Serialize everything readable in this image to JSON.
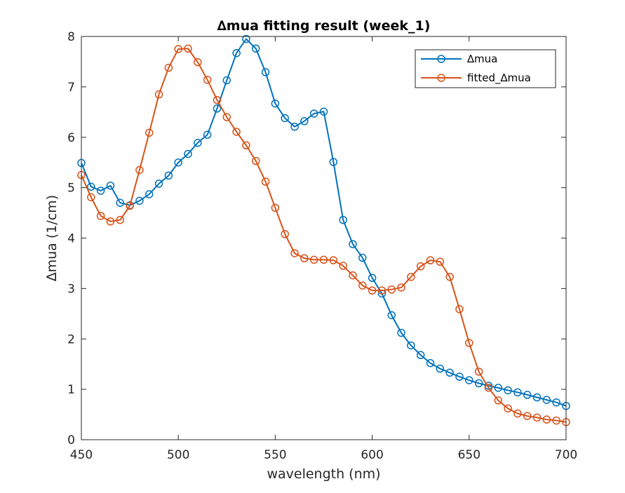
{
  "chart_data": {
    "type": "line",
    "title": "∆mua fitting result (week_1)",
    "xlabel": "wavelength (nm)",
    "ylabel": "∆mua (1/cm)",
    "xlim": [
      450,
      700
    ],
    "ylim": [
      0,
      8
    ],
    "xticks": [
      450,
      500,
      550,
      600,
      650,
      700
    ],
    "yticks": [
      0,
      1,
      2,
      3,
      4,
      5,
      6,
      7,
      8
    ],
    "grid": false,
    "legend_position": "top-right",
    "x": [
      450,
      455,
      460,
      465,
      470,
      475,
      480,
      485,
      490,
      495,
      500,
      505,
      510,
      515,
      520,
      525,
      530,
      535,
      540,
      545,
      550,
      555,
      560,
      565,
      570,
      575,
      580,
      585,
      590,
      595,
      600,
      605,
      610,
      615,
      620,
      625,
      630,
      635,
      640,
      645,
      650,
      655,
      660,
      665,
      670,
      675,
      680,
      685,
      690,
      695,
      700
    ],
    "series": [
      {
        "name": "∆mua",
        "color": "#0072BD",
        "marker": "circle",
        "values": [
          5.49,
          5.02,
          4.94,
          5.04,
          4.7,
          4.65,
          4.74,
          4.87,
          5.08,
          5.24,
          5.5,
          5.67,
          5.89,
          6.05,
          6.57,
          7.13,
          7.67,
          7.95,
          7.76,
          7.29,
          6.67,
          6.38,
          6.21,
          6.32,
          6.47,
          6.51,
          5.51,
          4.36,
          3.88,
          3.61,
          3.21,
          2.9,
          2.47,
          2.12,
          1.87,
          1.68,
          1.52,
          1.41,
          1.33,
          1.25,
          1.18,
          1.12,
          1.07,
          1.03,
          0.98,
          0.94,
          0.89,
          0.84,
          0.79,
          0.74,
          0.67
        ]
      },
      {
        "name": "fitted_∆mua",
        "color": "#D95319",
        "marker": "circle",
        "values": [
          5.25,
          4.81,
          4.44,
          4.33,
          4.36,
          4.64,
          5.35,
          6.09,
          6.85,
          7.38,
          7.75,
          7.76,
          7.49,
          7.14,
          6.74,
          6.4,
          6.11,
          5.84,
          5.53,
          5.12,
          4.6,
          4.08,
          3.7,
          3.6,
          3.57,
          3.57,
          3.56,
          3.45,
          3.26,
          3.06,
          2.96,
          2.96,
          2.98,
          3.02,
          3.23,
          3.44,
          3.56,
          3.53,
          3.23,
          2.59,
          1.92,
          1.35,
          1.03,
          0.78,
          0.62,
          0.52,
          0.47,
          0.44,
          0.4,
          0.38,
          0.35
        ]
      }
    ]
  }
}
